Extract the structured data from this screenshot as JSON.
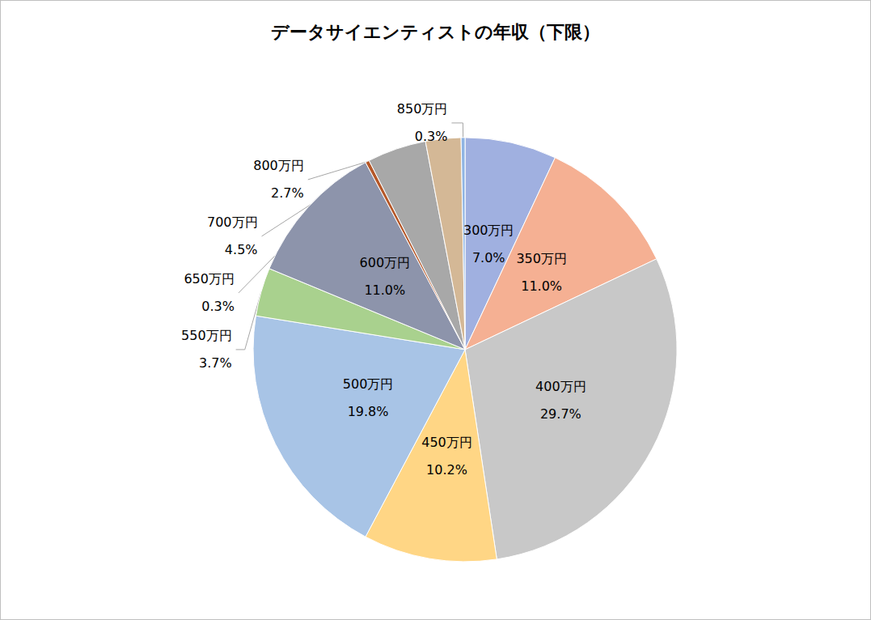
{
  "chart_data": {
    "type": "pie",
    "title": "データサイエンティストの年収（下限）",
    "categories": [
      "300万円",
      "350万円",
      "400万円",
      "450万円",
      "500万円",
      "550万円",
      "600万円",
      "650万円",
      "700万円",
      "800万円",
      "850万円"
    ],
    "values": [
      7.0,
      11.0,
      29.7,
      10.2,
      19.8,
      3.7,
      11.0,
      0.3,
      4.5,
      2.7,
      0.3
    ],
    "value_labels": [
      "7.0%",
      "11.0%",
      "29.7%",
      "10.2%",
      "19.8%",
      "3.7%",
      "11.0%",
      "0.3%",
      "4.5%",
      "2.7%",
      "0.3%"
    ],
    "colors": [
      "#a0b0e0",
      "#f5b093",
      "#c8c8c8",
      "#ffd685",
      "#a8c4e6",
      "#a9d18e",
      "#8d94ab",
      "#b5582a",
      "#a8a8a8",
      "#d4b896",
      "#8fb4e3"
    ],
    "data_labels": true
  }
}
